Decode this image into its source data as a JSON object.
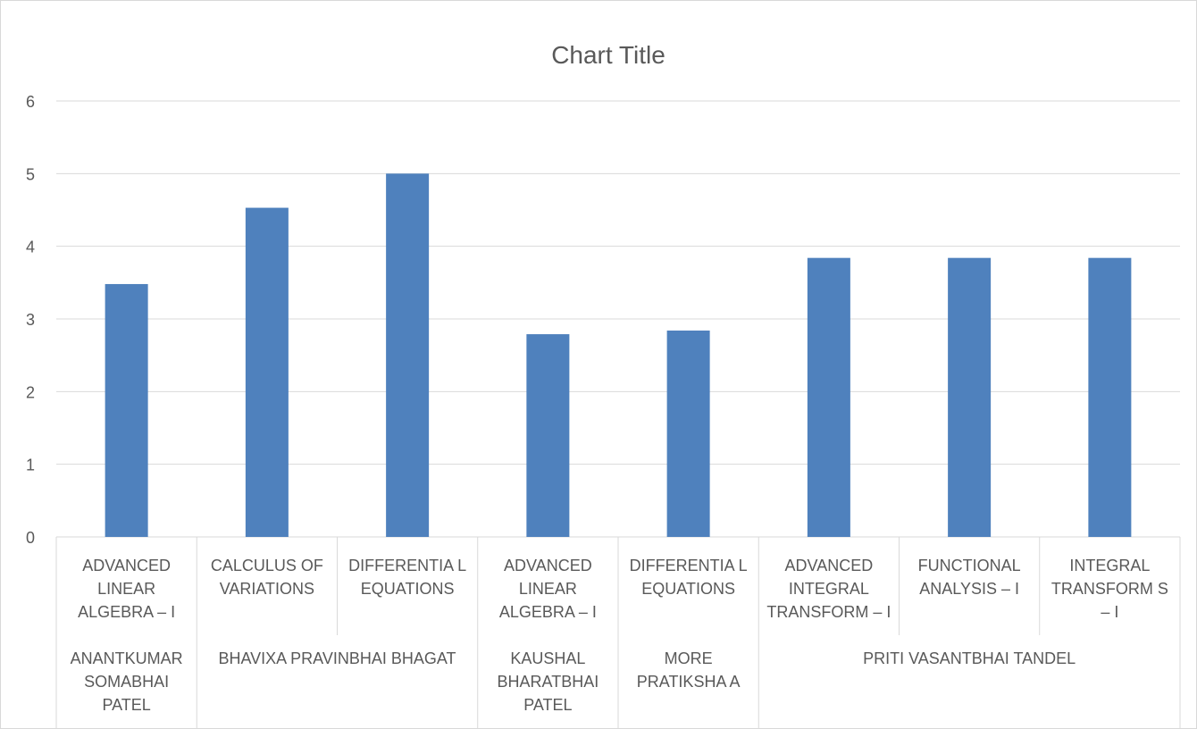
{
  "chart_data": {
    "type": "bar",
    "title": "Chart Title",
    "xlabel": "",
    "ylabel": "",
    "ylim": [
      0,
      6
    ],
    "yticks": [
      0,
      1,
      2,
      3,
      4,
      5,
      6
    ],
    "grid": true,
    "categories": [
      "ADVANCED LINEAR ALGEBRA – I",
      "CALCULUS OF VARIATIONS",
      "DIFFERENTIA L EQUATIONS",
      "ADVANCED LINEAR ALGEBRA – I",
      "DIFFERENTIA L EQUATIONS",
      "ADVANCED INTEGRAL TRANSFORM – I",
      "FUNCTIONAL ANALYSIS – I",
      "INTEGRAL TRANSFORM S – I"
    ],
    "category_lines": [
      [
        "ADVANCED",
        "LINEAR",
        "ALGEBRA – I"
      ],
      [
        "CALCULUS OF",
        "VARIATIONS"
      ],
      [
        "DIFFERENTIA L",
        "EQUATIONS"
      ],
      [
        "ADVANCED",
        "LINEAR",
        "ALGEBRA – I"
      ],
      [
        "DIFFERENTIA L",
        "EQUATIONS"
      ],
      [
        "ADVANCED",
        "INTEGRAL",
        "TRANSFORM – I"
      ],
      [
        "FUNCTIONAL",
        "ANALYSIS – I"
      ],
      [
        "INTEGRAL",
        "TRANSFORM S",
        "– I"
      ]
    ],
    "groups": [
      {
        "name": "ANANTKUMAR SOMABHAI PATEL",
        "lines": [
          "ANANTKUMAR",
          "SOMABHAI",
          "PATEL"
        ],
        "start": 0,
        "end": 0
      },
      {
        "name": "BHAVIXA PRAVINBHAI BHAGAT",
        "lines": [
          "BHAVIXA PRAVINBHAI BHAGAT"
        ],
        "start": 1,
        "end": 2
      },
      {
        "name": "KAUSHAL BHARATBHAI PATEL",
        "lines": [
          "KAUSHAL",
          "BHARATBHAI",
          "PATEL"
        ],
        "start": 3,
        "end": 3
      },
      {
        "name": "MORE PRATIKSHA A",
        "lines": [
          "MORE",
          "PRATIKSHA A"
        ],
        "start": 4,
        "end": 4
      },
      {
        "name": "PRITI VASANTBHAI TANDEL",
        "lines": [
          "PRITI VASANTBHAI TANDEL"
        ],
        "start": 5,
        "end": 7
      }
    ],
    "series": [
      {
        "values": [
          3.48,
          4.53,
          5.0,
          2.79,
          2.84,
          3.84,
          3.84,
          3.84
        ],
        "color": "#4f81bd"
      }
    ],
    "legend": "none"
  }
}
